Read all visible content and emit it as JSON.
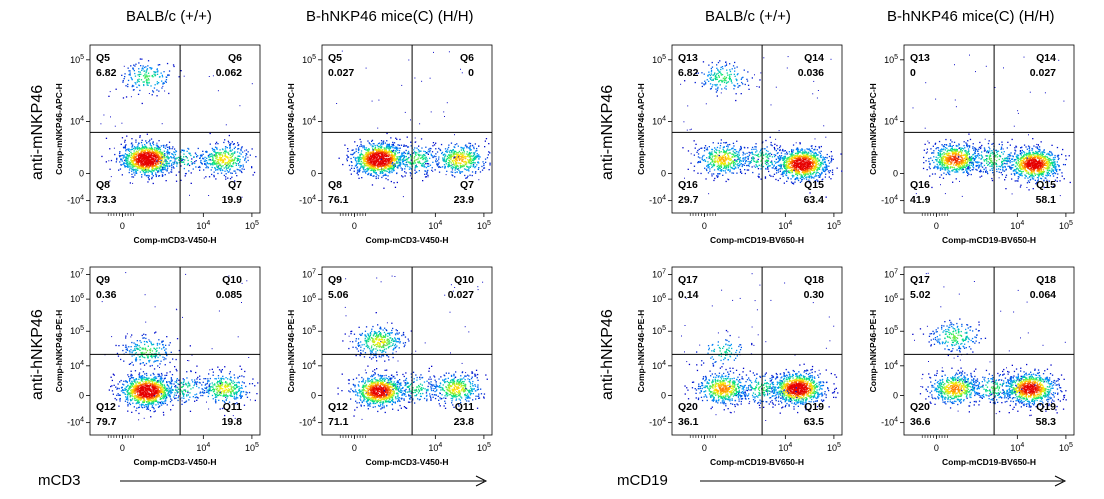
{
  "panels": [
    {
      "column_headers": [
        "BALB/c (+/+)",
        "B-hNKP46 mice(C) (H/H)"
      ],
      "row_labels": [
        "anti-mNKP46",
        "anti-hNKP46"
      ],
      "x_marker": "mCD3"
    },
    {
      "column_headers": [
        "BALB/c (+/+)",
        "B-hNKP46 mice(C) (H/H)"
      ],
      "row_labels": [
        "anti-mNKP46",
        "anti-hNKP46"
      ],
      "x_marker": "mCD19"
    }
  ],
  "chart_data": [
    {
      "type": "scatter",
      "panel": 0,
      "row": 0,
      "col": 0,
      "xlabel": "Comp-mCD3-V450-H",
      "ylabel": "Comp-mNKP46-APC-H",
      "x_ticks": [
        "0",
        "10^4",
        "10^5"
      ],
      "y_ticks": [
        "-10^4",
        "0",
        "10^4",
        "10^5"
      ],
      "quadrants": [
        {
          "name": "Q5",
          "value": "6.82"
        },
        {
          "name": "Q6",
          "value": "0.062"
        },
        {
          "name": "Q7",
          "value": "19.9"
        },
        {
          "name": "Q8",
          "value": "73.3"
        }
      ],
      "populations": [
        {
          "x": 0.6,
          "y": 0.3,
          "weight": 0.62
        },
        {
          "x": 2.5,
          "y": 0.3,
          "weight": 0.22
        },
        {
          "x": 0.6,
          "y": 1.95,
          "weight": 0.1
        },
        {
          "x": 1.5,
          "y": 0.3,
          "weight": 0.06
        }
      ]
    },
    {
      "type": "scatter",
      "panel": 0,
      "row": 0,
      "col": 1,
      "xlabel": "Comp-mCD3-V450-H",
      "ylabel": "Comp-mNKP46-APC-H",
      "x_ticks": [
        "0",
        "10^4",
        "10^5"
      ],
      "y_ticks": [
        "-10^4",
        "0",
        "10^4",
        "10^5"
      ],
      "quadrants": [
        {
          "name": "Q5",
          "value": "0.027"
        },
        {
          "name": "Q6",
          "value": "0"
        },
        {
          "name": "Q7",
          "value": "23.9"
        },
        {
          "name": "Q8",
          "value": "76.1"
        }
      ],
      "populations": [
        {
          "x": 0.6,
          "y": 0.3,
          "weight": 0.62
        },
        {
          "x": 2.6,
          "y": 0.3,
          "weight": 0.26
        },
        {
          "x": 1.5,
          "y": 0.3,
          "weight": 0.12
        }
      ]
    },
    {
      "type": "scatter",
      "panel": 0,
      "row": 1,
      "col": 0,
      "xlabel": "Comp-mCD3-V450-H",
      "ylabel": "Comp-hNKP46-PE-H",
      "x_ticks": [
        "0",
        "10^4",
        "10^5"
      ],
      "y_ticks": [
        "-10^4",
        "0",
        "10^4",
        "10^5",
        "10^6",
        "10^7"
      ],
      "quadrants": [
        {
          "name": "Q9",
          "value": "0.36"
        },
        {
          "name": "Q10",
          "value": "0.085"
        },
        {
          "name": "Q11",
          "value": "19.8"
        },
        {
          "name": "Q12",
          "value": "79.7"
        }
      ],
      "populations": [
        {
          "x": 0.6,
          "y": 0.1,
          "weight": 0.6
        },
        {
          "x": 0.6,
          "y": 0.9,
          "weight": 0.12
        },
        {
          "x": 2.5,
          "y": 0.15,
          "weight": 0.2
        },
        {
          "x": 1.5,
          "y": 0.15,
          "weight": 0.08
        }
      ]
    },
    {
      "type": "scatter",
      "panel": 0,
      "row": 1,
      "col": 1,
      "xlabel": "Comp-mCD3-V450-H",
      "ylabel": "Comp-hNKP46-PE-H",
      "x_ticks": [
        "0",
        "10^4",
        "10^5"
      ],
      "y_ticks": [
        "-10^4",
        "0",
        "10^4",
        "10^5",
        "10^6",
        "10^7"
      ],
      "quadrants": [
        {
          "name": "Q9",
          "value": "5.06"
        },
        {
          "name": "Q10",
          "value": "0.027"
        },
        {
          "name": "Q11",
          "value": "23.8"
        },
        {
          "name": "Q12",
          "value": "71.1"
        }
      ],
      "populations": [
        {
          "x": 0.6,
          "y": 0.1,
          "weight": 0.5
        },
        {
          "x": 0.6,
          "y": 1.1,
          "weight": 0.2
        },
        {
          "x": 2.5,
          "y": 0.15,
          "weight": 0.22
        },
        {
          "x": 1.5,
          "y": 0.15,
          "weight": 0.08
        }
      ]
    },
    {
      "type": "scatter",
      "panel": 1,
      "row": 0,
      "col": 0,
      "xlabel": "Comp-mCD19-BV650-H",
      "ylabel": "Comp-mNKP46-APC-H",
      "x_ticks": [
        "0",
        "10^4",
        "10^5"
      ],
      "y_ticks": [
        "-10^4",
        "0",
        "10^4",
        "10^5"
      ],
      "quadrants": [
        {
          "name": "Q13",
          "value": "6.82"
        },
        {
          "name": "Q14",
          "value": "0.036"
        },
        {
          "name": "Q15",
          "value": "63.4"
        },
        {
          "name": "Q16",
          "value": "29.7"
        }
      ],
      "populations": [
        {
          "x": 0.45,
          "y": 0.3,
          "weight": 0.25
        },
        {
          "x": 2.4,
          "y": 0.2,
          "weight": 0.55
        },
        {
          "x": 0.45,
          "y": 1.95,
          "weight": 0.1
        },
        {
          "x": 1.4,
          "y": 0.3,
          "weight": 0.1
        }
      ]
    },
    {
      "type": "scatter",
      "panel": 1,
      "row": 0,
      "col": 1,
      "xlabel": "Comp-mCD19-BV650-H",
      "ylabel": "Comp-mNKP46-APC-H",
      "x_ticks": [
        "0",
        "10^4",
        "10^5"
      ],
      "y_ticks": [
        "-10^4",
        "0",
        "10^4",
        "10^5"
      ],
      "quadrants": [
        {
          "name": "Q13",
          "value": "0"
        },
        {
          "name": "Q14",
          "value": "0.027"
        },
        {
          "name": "Q15",
          "value": "58.1"
        },
        {
          "name": "Q16",
          "value": "41.9"
        }
      ],
      "populations": [
        {
          "x": 0.45,
          "y": 0.3,
          "weight": 0.38
        },
        {
          "x": 2.4,
          "y": 0.2,
          "weight": 0.5
        },
        {
          "x": 1.4,
          "y": 0.3,
          "weight": 0.12
        }
      ]
    },
    {
      "type": "scatter",
      "panel": 1,
      "row": 1,
      "col": 0,
      "xlabel": "Comp-mCD19-BV650-H",
      "ylabel": "Comp-hNKP46-PE-H",
      "x_ticks": [
        "0",
        "10^4",
        "10^5"
      ],
      "y_ticks": [
        "-10^4",
        "0",
        "10^4",
        "10^5",
        "10^6",
        "10^7"
      ],
      "quadrants": [
        {
          "name": "Q17",
          "value": "0.14"
        },
        {
          "name": "Q18",
          "value": "0.30"
        },
        {
          "name": "Q19",
          "value": "63.5"
        },
        {
          "name": "Q20",
          "value": "36.1"
        }
      ],
      "populations": [
        {
          "x": 0.45,
          "y": 0.15,
          "weight": 0.3
        },
        {
          "x": 2.3,
          "y": 0.15,
          "weight": 0.55
        },
        {
          "x": 0.45,
          "y": 0.9,
          "weight": 0.05
        },
        {
          "x": 1.4,
          "y": 0.15,
          "weight": 0.1
        }
      ]
    },
    {
      "type": "scatter",
      "panel": 1,
      "row": 1,
      "col": 1,
      "xlabel": "Comp-mCD19-BV650-H",
      "ylabel": "Comp-hNKP46-PE-H",
      "x_ticks": [
        "0",
        "10^4",
        "10^5"
      ],
      "y_ticks": [
        "-10^4",
        "0",
        "10^4",
        "10^5",
        "10^6",
        "10^7"
      ],
      "quadrants": [
        {
          "name": "Q17",
          "value": "5.02"
        },
        {
          "name": "Q18",
          "value": "0.064"
        },
        {
          "name": "Q19",
          "value": "58.3"
        },
        {
          "name": "Q20",
          "value": "36.6"
        }
      ],
      "populations": [
        {
          "x": 0.45,
          "y": 0.15,
          "weight": 0.3
        },
        {
          "x": 0.45,
          "y": 1.2,
          "weight": 0.12
        },
        {
          "x": 2.3,
          "y": 0.15,
          "weight": 0.48
        },
        {
          "x": 1.4,
          "y": 0.15,
          "weight": 0.1
        }
      ]
    }
  ]
}
